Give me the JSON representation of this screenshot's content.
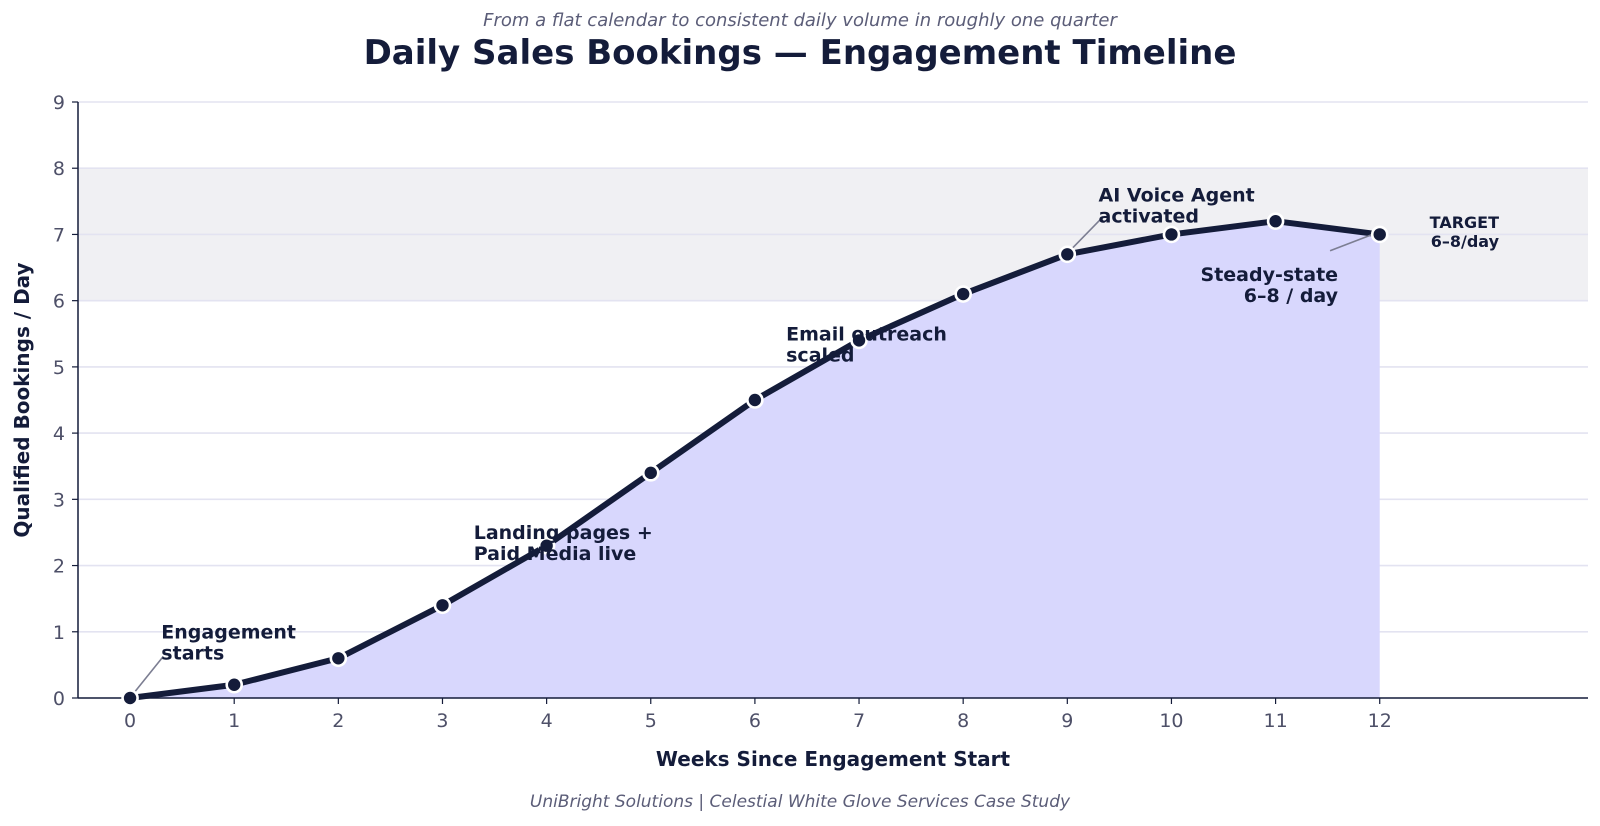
{
  "chart_data": {
    "type": "area",
    "title": "Daily Sales Bookings — Engagement Timeline",
    "subtitle": "From a flat calendar to consistent daily volume in roughly one quarter",
    "footer": "UniBright Solutions  |  Celestial White Glove Services Case Study",
    "xlabel": "Weeks Since Engagement Start",
    "ylabel": "Qualified Bookings / Day",
    "x": [
      0,
      1,
      2,
      3,
      4,
      5,
      6,
      7,
      8,
      9,
      10,
      11,
      12
    ],
    "series": [
      {
        "values": [
          0,
          0.2,
          0.6,
          1.4,
          2.3,
          3.4,
          4.5,
          5.4,
          6.1,
          6.7,
          7.0,
          7.2,
          7.0
        ]
      }
    ],
    "xlim": [
      -0.5,
      14
    ],
    "ylim": [
      0,
      9
    ],
    "xticks": [
      0,
      1,
      2,
      3,
      4,
      5,
      6,
      7,
      8,
      9,
      10,
      11,
      12
    ],
    "yticks": [
      0,
      1,
      2,
      3,
      4,
      5,
      6,
      7,
      8,
      9
    ],
    "target_band": {
      "from": 6,
      "to": 8,
      "label_lines": [
        "TARGET",
        "6–8/day"
      ]
    },
    "grid": true,
    "annotations": [
      {
        "lines": [
          "Engagement",
          "starts"
        ],
        "x": 0,
        "y": 0,
        "text_x": 0.3,
        "text_y": 0.9,
        "leader": true
      },
      {
        "lines": [
          "Landing pages +",
          "Paid Media live"
        ],
        "x": 4,
        "y": 2.3,
        "text_x": 3.3,
        "text_y": 2.4,
        "leader": false
      },
      {
        "lines": [
          "Email outreach",
          "scaled"
        ],
        "x": 7,
        "y": 5.4,
        "text_x": 6.3,
        "text_y": 5.4,
        "leader": false
      },
      {
        "lines": [
          "AI Voice Agent",
          "activated"
        ],
        "x": 9,
        "y": 6.7,
        "text_x": 9.3,
        "text_y": 7.5,
        "leader": true
      },
      {
        "lines": [
          "Steady-state",
          "6–8 / day"
        ],
        "x": 12,
        "y": 7.0,
        "text_x": 11.6,
        "text_y": 6.3,
        "leader": true,
        "align": "end"
      }
    ],
    "colors": {
      "line": "#141c3a",
      "fill": "#d8d7fd",
      "band": "#f0f0f3",
      "grid": "#e3e3f1",
      "axis": "#141c3a",
      "marker_edge": "#ffffff",
      "leader": "#7c7e92"
    }
  }
}
